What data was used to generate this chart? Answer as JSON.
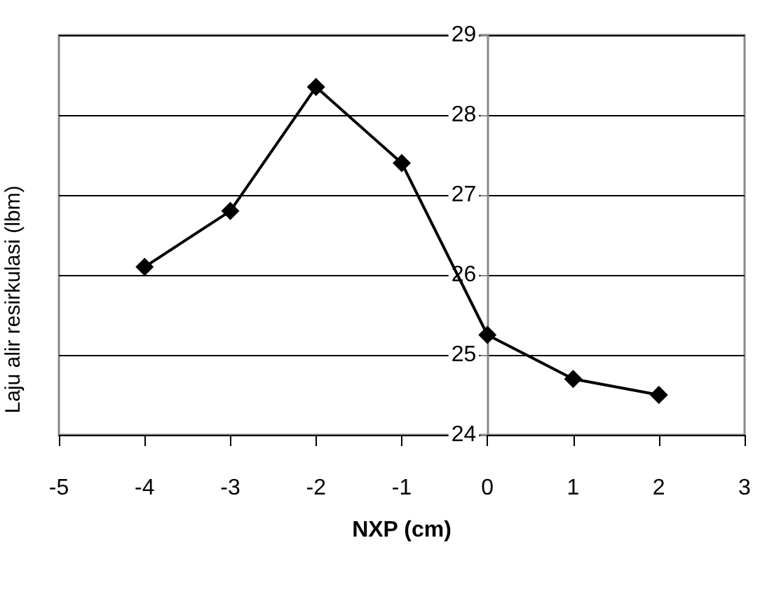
{
  "chart_data": {
    "type": "line",
    "xlabel": "NXP (cm)",
    "ylabel": "Laju alir resirkulasi (lbm)",
    "x": [
      -4,
      -3,
      -2,
      -1,
      0,
      1,
      2
    ],
    "series": [
      {
        "color": "#000000",
        "values": [
          26.1,
          26.8,
          28.35,
          27.4,
          25.25,
          24.7,
          24.5
        ]
      }
    ],
    "xlim": [
      -5,
      3
    ],
    "xticks": [
      -5,
      -4,
      -3,
      -2,
      -1,
      0,
      1,
      2,
      3
    ],
    "ylim": [
      24,
      29
    ],
    "yticks": [
      24,
      25,
      26,
      27,
      28,
      29
    ],
    "grid": "y",
    "marker": "diamond",
    "line_style": "solid"
  }
}
